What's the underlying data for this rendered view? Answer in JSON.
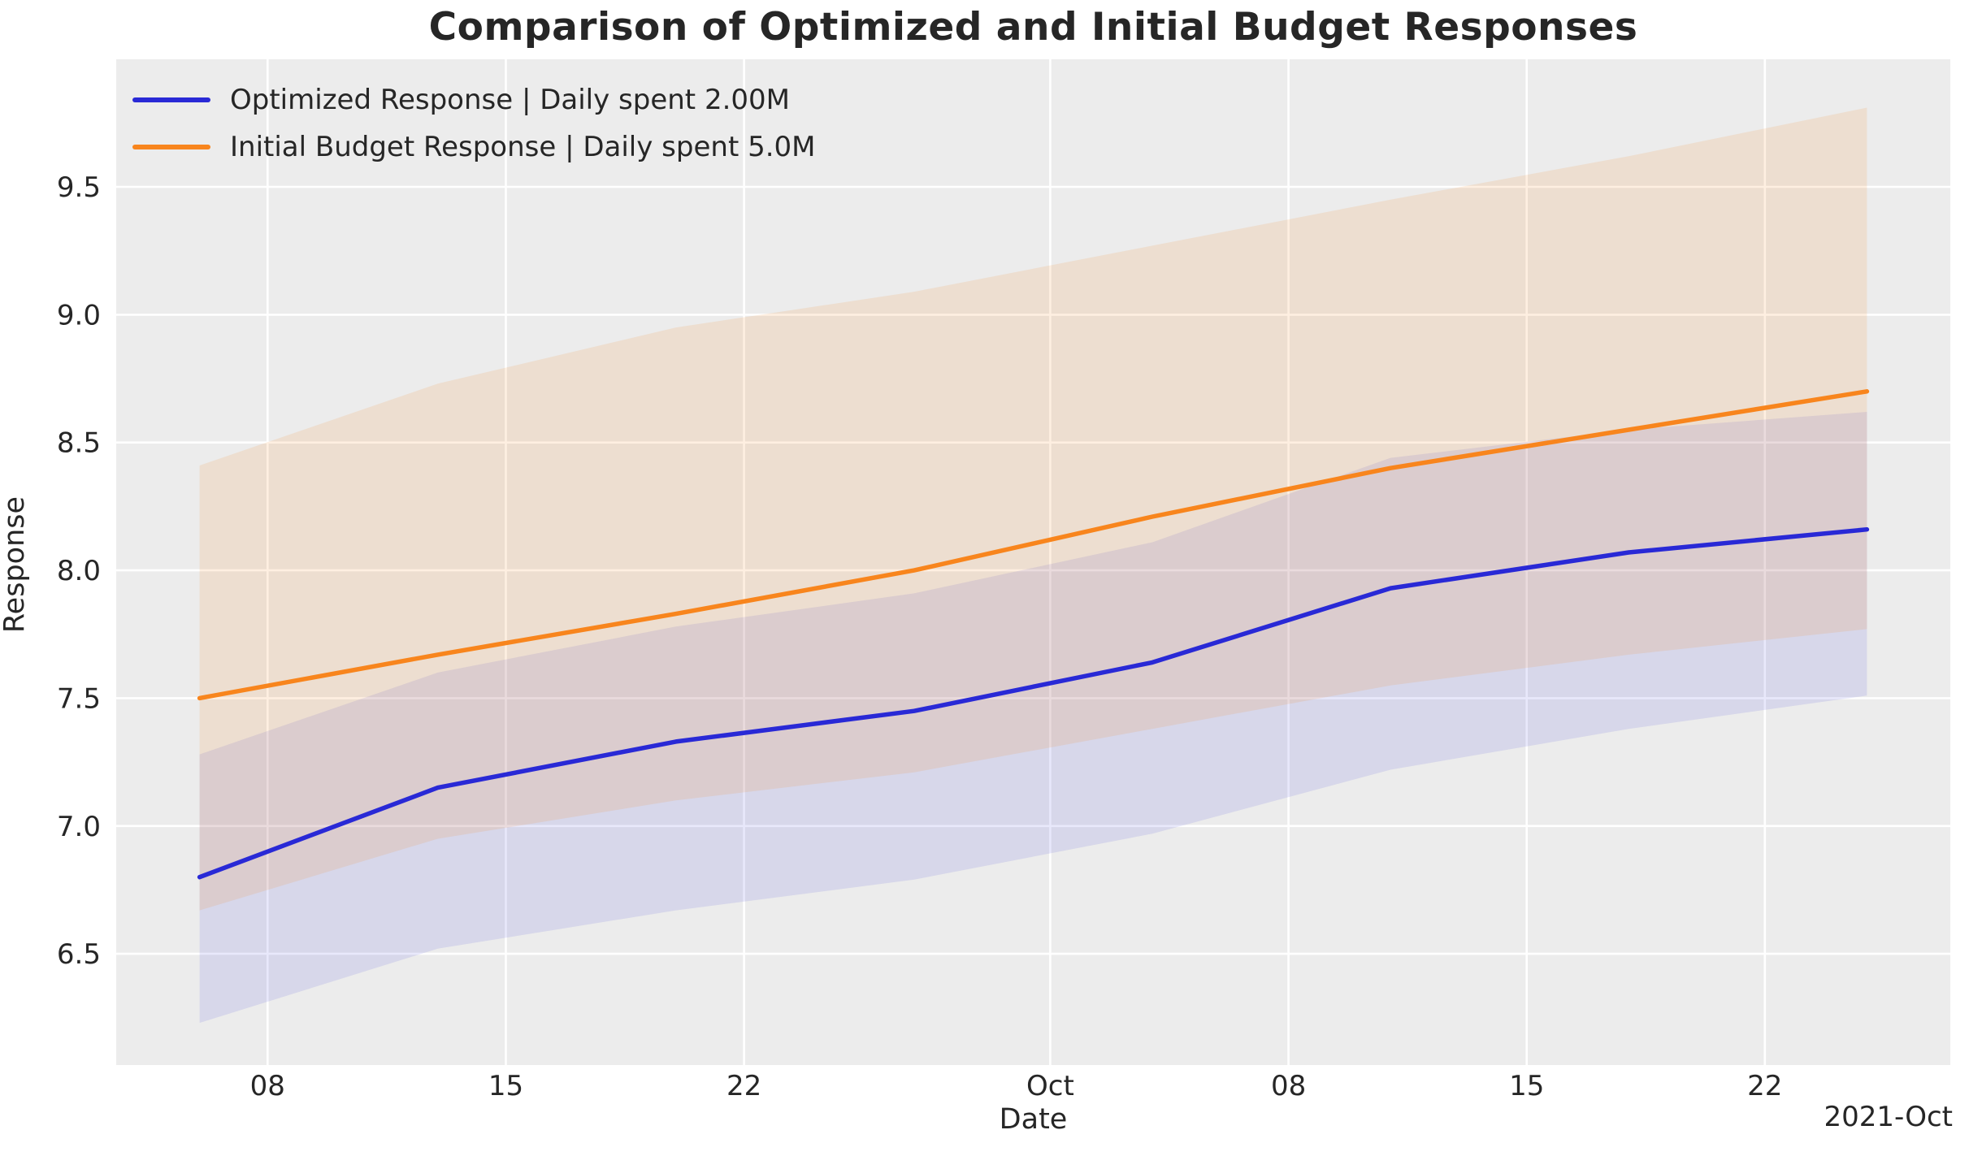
{
  "title": "Comparison of Optimized and Initial Budget Responses",
  "xlabel": "Date",
  "ylabel": "Response",
  "axis_offset_label": "2021-Oct",
  "legend": {
    "items": [
      {
        "label": "Optimized Response | Daily spent 2.00M",
        "color": "#2929d6"
      },
      {
        "label": "Initial Budget Response | Daily spent 5.0M",
        "color": "#f8851d"
      }
    ]
  },
  "colors": {
    "axes_background": "#ececec",
    "gridline": "#ffffff",
    "text": "#262626",
    "optimized_line": "#2929d6",
    "initial_line": "#f8851d",
    "optimized_band": "rgba(33,33,220,0.10)",
    "initial_band": "rgba(246,130,25,0.13)"
  },
  "chart_data": {
    "type": "line",
    "title": "Comparison of Optimized and Initial Budget Responses",
    "xlabel": "Date",
    "ylabel": "Response",
    "x_dates": [
      "2021-09-06",
      "2021-09-13",
      "2021-09-20",
      "2021-09-27",
      "2021-10-04",
      "2021-10-11",
      "2021-10-18",
      "2021-10-25"
    ],
    "x_day_offsets": [
      0,
      7,
      14,
      21,
      28,
      35,
      42,
      49
    ],
    "series": [
      {
        "name": "Optimized Response | Daily spent 2.00M",
        "values": [
          6.8,
          7.15,
          7.33,
          7.45,
          7.64,
          7.93,
          8.07,
          8.16
        ],
        "ci_lower": [
          6.23,
          6.52,
          6.67,
          6.79,
          6.97,
          7.22,
          7.38,
          7.51
        ],
        "ci_upper": [
          7.28,
          7.6,
          7.78,
          7.91,
          8.11,
          8.44,
          8.55,
          8.62
        ]
      },
      {
        "name": "Initial Budget Response | Daily spent 5.0M",
        "values": [
          7.5,
          7.67,
          7.83,
          8.0,
          8.21,
          8.4,
          8.55,
          8.7
        ],
        "ci_lower": [
          6.67,
          6.95,
          7.1,
          7.21,
          7.38,
          7.55,
          7.67,
          7.77
        ],
        "ci_upper": [
          8.41,
          8.73,
          8.95,
          9.09,
          9.27,
          9.45,
          9.62,
          9.81
        ]
      }
    ],
    "x_ticks": {
      "day_offsets": [
        2,
        9,
        16,
        25,
        32,
        39,
        46
      ],
      "labels": [
        "08",
        "15",
        "22",
        "Oct",
        "08",
        "15",
        "22"
      ]
    },
    "x_axis_offset_text": "2021-Oct",
    "y_ticks": [
      6.5,
      7.0,
      7.5,
      8.0,
      8.5,
      9.0,
      9.5
    ],
    "xlim_days": [
      -2.45,
      51.45
    ],
    "ylim": [
      6.065,
      9.999
    ],
    "grid": true,
    "legend_position": "upper left"
  }
}
